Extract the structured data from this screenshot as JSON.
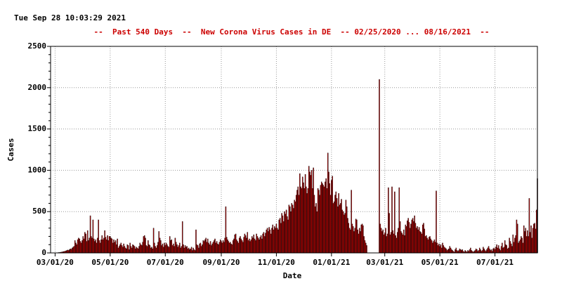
{
  "chart_data": {
    "type": "bar",
    "timestamp": "Tue Sep 28 10:03:29 2021",
    "title": "--  Past 540 Days  --  New Corona Virus Cases in DE  -- 02/25/2020 ... 08/16/2021  --",
    "x_label": "Date",
    "y_label": "Cases",
    "color": "#c00000",
    "edge_color": "#000000",
    "grid": true,
    "xlim": [
      0,
      539
    ],
    "xticks": [
      {
        "value": 5,
        "label": "03/01/20"
      },
      {
        "value": 66,
        "label": "05/01/20"
      },
      {
        "value": 127,
        "label": "07/01/20"
      },
      {
        "value": 189,
        "label": "09/01/20"
      },
      {
        "value": 250,
        "label": "11/01/20"
      },
      {
        "value": 311,
        "label": "01/01/21"
      },
      {
        "value": 370,
        "label": "03/01/21"
      },
      {
        "value": 431,
        "label": "05/01/21"
      },
      {
        "value": 492,
        "label": "07/01/21"
      }
    ],
    "ylim": [
      0,
      2500
    ],
    "yticks": [
      0,
      500,
      1000,
      1500,
      2000,
      2500
    ],
    "values": [
      0,
      0,
      0,
      0,
      0,
      0,
      1,
      2,
      3,
      5,
      5,
      8,
      10,
      12,
      15,
      18,
      20,
      25,
      30,
      35,
      30,
      40,
      50,
      45,
      60,
      70,
      80,
      150,
      120,
      100,
      160,
      180,
      170,
      140,
      120,
      150,
      200,
      170,
      250,
      230,
      140,
      270,
      150,
      180,
      450,
      200,
      180,
      400,
      170,
      140,
      160,
      120,
      180,
      400,
      150,
      120,
      160,
      210,
      160,
      180,
      270,
      190,
      160,
      210,
      150,
      200,
      200,
      180,
      170,
      120,
      160,
      130,
      150,
      100,
      170,
      60,
      80,
      100,
      120,
      90,
      70,
      110,
      80,
      60,
      50,
      100,
      90,
      40,
      120,
      80,
      60,
      100,
      90,
      80,
      50,
      70,
      60,
      50,
      80,
      120,
      100,
      90,
      130,
      200,
      210,
      180,
      90,
      80,
      150,
      100,
      90,
      60,
      70,
      50,
      300,
      120,
      80,
      60,
      90,
      130,
      260,
      180,
      150,
      90,
      110,
      70,
      120,
      90,
      120,
      100,
      80,
      70,
      200,
      150,
      160,
      90,
      110,
      80,
      180,
      130,
      100,
      70,
      90,
      120,
      60,
      80,
      380,
      100,
      60,
      90,
      70,
      80,
      50,
      60,
      40,
      50,
      70,
      30,
      60,
      40,
      30,
      280,
      100,
      90,
      60,
      110,
      120,
      80,
      100,
      150,
      140,
      160,
      180,
      130,
      170,
      120,
      100,
      140,
      90,
      110,
      130,
      150,
      170,
      120,
      140,
      110,
      100,
      130,
      160,
      140,
      120,
      150,
      130,
      180,
      560,
      190,
      160,
      140,
      120,
      130,
      110,
      100,
      150,
      170,
      220,
      230,
      160,
      140,
      120,
      180,
      200,
      170,
      150,
      130,
      190,
      230,
      210,
      180,
      250,
      150,
      170,
      140,
      160,
      200,
      180,
      220,
      170,
      150,
      230,
      200,
      180,
      160,
      190,
      210,
      170,
      230,
      250,
      200,
      240,
      280,
      300,
      260,
      310,
      280,
      230,
      300,
      340,
      280,
      320,
      300,
      350,
      300,
      280,
      400,
      420,
      360,
      480,
      450,
      380,
      500,
      470,
      520,
      440,
      400,
      580,
      560,
      500,
      600,
      580,
      540,
      640,
      620,
      700,
      760,
      800,
      700,
      960,
      800,
      780,
      920,
      850,
      780,
      950,
      800,
      720,
      780,
      1050,
      980,
      940,
      1000,
      780,
      1030,
      700,
      560,
      600,
      500,
      780,
      760,
      700,
      820,
      860,
      840,
      820,
      800,
      860,
      900,
      780,
      1210,
      980,
      840,
      700,
      880,
      930,
      600,
      620,
      700,
      740,
      660,
      560,
      720,
      580,
      600,
      650,
      520,
      500,
      460,
      480,
      640,
      560,
      420,
      360,
      300,
      280,
      760,
      350,
      320,
      260,
      300,
      410,
      400,
      280,
      230,
      300,
      260,
      340,
      350,
      330,
      200,
      150,
      120,
      90,
      0,
      2,
      0,
      0,
      0,
      0,
      0,
      0,
      0,
      0,
      0,
      0,
      0,
      2100,
      350,
      300,
      260,
      280,
      220,
      240,
      300,
      200,
      230,
      790,
      480,
      220,
      250,
      800,
      270,
      230,
      740,
      210,
      180,
      250,
      300,
      790,
      380,
      260,
      240,
      220,
      280,
      210,
      340,
      320,
      390,
      420,
      370,
      300,
      350,
      400,
      420,
      380,
      450,
      360,
      300,
      320,
      280,
      310,
      260,
      250,
      230,
      340,
      360,
      290,
      200,
      210,
      180,
      160,
      190,
      200,
      170,
      150,
      120,
      140,
      160,
      130,
      750,
      120,
      90,
      110,
      80,
      100,
      60,
      120,
      90,
      70,
      60,
      50,
      30,
      40,
      50,
      80,
      60,
      40,
      30,
      20,
      10,
      40,
      60,
      30,
      20,
      30,
      50,
      40,
      30,
      40,
      20,
      10,
      30,
      20,
      10,
      30,
      20,
      40,
      60,
      30,
      20,
      10,
      20,
      30,
      50,
      40,
      20,
      30,
      60,
      40,
      20,
      30,
      70,
      50,
      30,
      20,
      40,
      60,
      80,
      50,
      30,
      40,
      20,
      50,
      60,
      40,
      70,
      100,
      60,
      90,
      50,
      30,
      80,
      120,
      60,
      70,
      150,
      100,
      90,
      50,
      60,
      180,
      140,
      110,
      80,
      220,
      130,
      180,
      210,
      400,
      350,
      120,
      140,
      160,
      200,
      180,
      120,
      330,
      260,
      300,
      200,
      270,
      200,
      660,
      250,
      330,
      180,
      300,
      350,
      360,
      290,
      520,
      900
    ]
  }
}
